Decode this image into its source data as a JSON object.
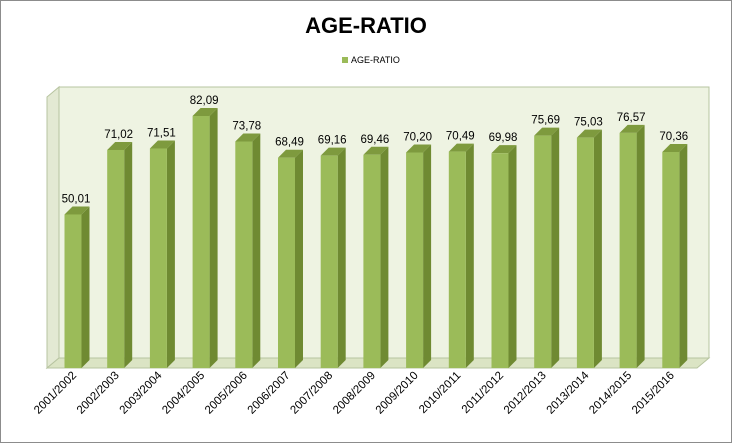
{
  "chart_data": {
    "type": "bar",
    "title": "AGE-RATIO",
    "legend": {
      "position": "top",
      "entries": [
        "AGE-RATIO"
      ]
    },
    "categories": [
      "2001/2002",
      "2002/2003",
      "2003/2004",
      "2004/2005",
      "2005/2006",
      "2006/2007",
      "2007/2008",
      "2008/2009",
      "2009/2010",
      "2010/2011",
      "2011/2012",
      "2012/2013",
      "2013/2014",
      "2014/2015",
      "2015/2016"
    ],
    "series": [
      {
        "name": "AGE-RATIO",
        "values": [
          50.01,
          71.02,
          71.51,
          82.09,
          73.78,
          68.49,
          69.16,
          69.46,
          70.2,
          70.49,
          69.98,
          75.69,
          75.03,
          76.57,
          70.36
        ],
        "value_labels": [
          "50,01",
          "71,02",
          "71,51",
          "82,09",
          "73,78",
          "68,49",
          "69,16",
          "69,46",
          "70,20",
          "70,49",
          "69,98",
          "75,69",
          "75,03",
          "76,57",
          "70,36"
        ]
      }
    ],
    "ylim": [
      0,
      90
    ],
    "grid": false,
    "xlabel": "",
    "ylabel": "",
    "style": "3d-column",
    "colors": {
      "bar_front": "#9bbb59",
      "bar_side": "#6f8a32",
      "bar_top": "#7e9a3e",
      "back_wall": "#eef3e2",
      "floor": "#dbe4c4",
      "wall_edge": "#b7c4a0"
    }
  }
}
